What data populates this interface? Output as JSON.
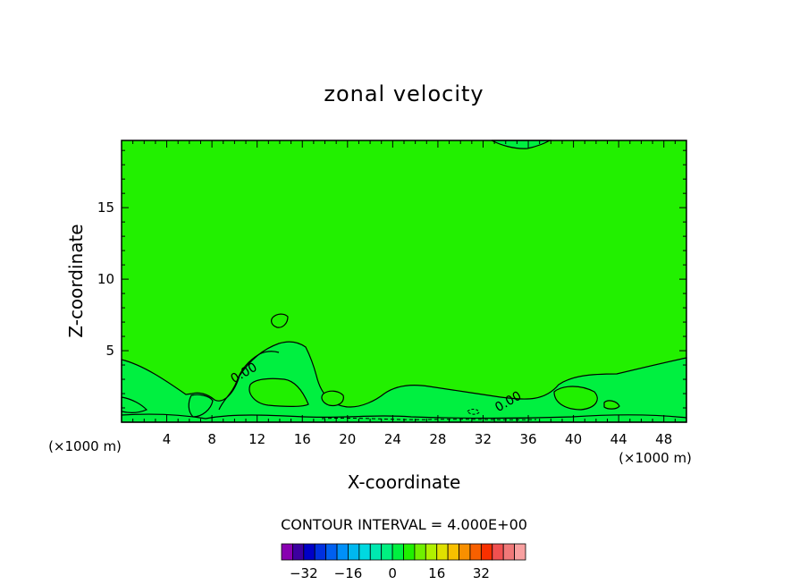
{
  "chart_data": {
    "type": "contour",
    "title": "zonal velocity",
    "xlabel": "X-coordinate",
    "ylabel": "Z-coordinate",
    "x_unit": "(×1000 m)",
    "xlim": [
      0,
      50
    ],
    "ylim": [
      0,
      19.7
    ],
    "x_ticks": [
      4,
      8,
      12,
      16,
      20,
      24,
      28,
      32,
      36,
      40,
      44,
      48
    ],
    "y_ticks": [
      5,
      10,
      15
    ],
    "contour_interval_label": "CONTOUR INTERVAL = 4.000E+00",
    "contour_labels": [
      {
        "text": "0.00",
        "x": 11.0,
        "y": 3.2
      },
      {
        "text": "0.00",
        "x": 34.4,
        "y": 1.2
      }
    ],
    "colorbar": {
      "ticks": [
        -32,
        -16,
        0,
        16,
        32
      ],
      "tick_labels": [
        "−32",
        "−16",
        "0",
        "16",
        "32"
      ],
      "colors": [
        "#8800b0",
        "#3c00a0",
        "#0000c8",
        "#0030e0",
        "#0060f0",
        "#0090f8",
        "#00b8f0",
        "#00d8e0",
        "#00e8b0",
        "#00f080",
        "#00f040",
        "#20f000",
        "#70f000",
        "#b0f000",
        "#e0e000",
        "#f8c000",
        "#f89000",
        "#f86000",
        "#f83000",
        "#f05050",
        "#f07878",
        "#f8a0a0"
      ]
    },
    "field_colors": {
      "background": "#22f000",
      "near_zero": "#00f040",
      "positive_band": "#20f000"
    }
  }
}
